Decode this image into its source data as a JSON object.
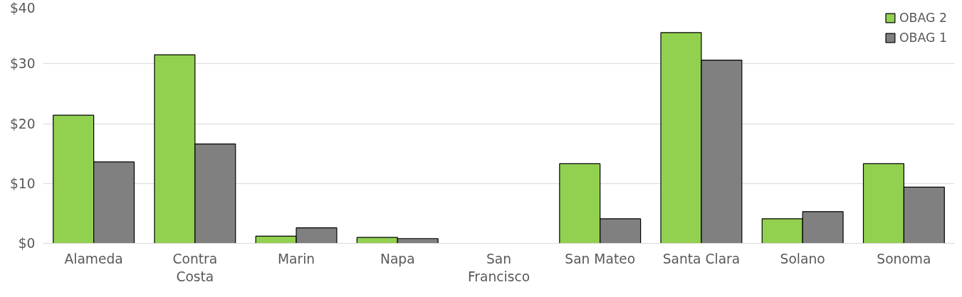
{
  "chart_data": {
    "type": "bar",
    "categories": [
      "Alameda",
      "Contra Costa",
      "Marin",
      "Napa",
      "San Francisco",
      "San Mateo",
      "Santa Clara",
      "Solano",
      "Sonoma"
    ],
    "series": [
      {
        "name": "OBAG 2",
        "color": "#92d050",
        "values": [
          21.4,
          31.5,
          1.2,
          1.0,
          null,
          13.3,
          35.2,
          4.1,
          13.3
        ]
      },
      {
        "name": "OBAG 1",
        "color": "#808080",
        "values": [
          13.6,
          16.6,
          2.6,
          0.8,
          null,
          4.1,
          30.6,
          5.3,
          9.4
        ]
      }
    ],
    "ylim": [
      0,
      40
    ],
    "yticks": [
      {
        "value": 0,
        "label": "$0"
      },
      {
        "value": 10,
        "label": "$10"
      },
      {
        "value": 20,
        "label": "$20"
      },
      {
        "value": 30,
        "label": "$30"
      },
      {
        "value": 40,
        "label": "$40"
      }
    ],
    "grid": "y",
    "legend": "top right"
  }
}
